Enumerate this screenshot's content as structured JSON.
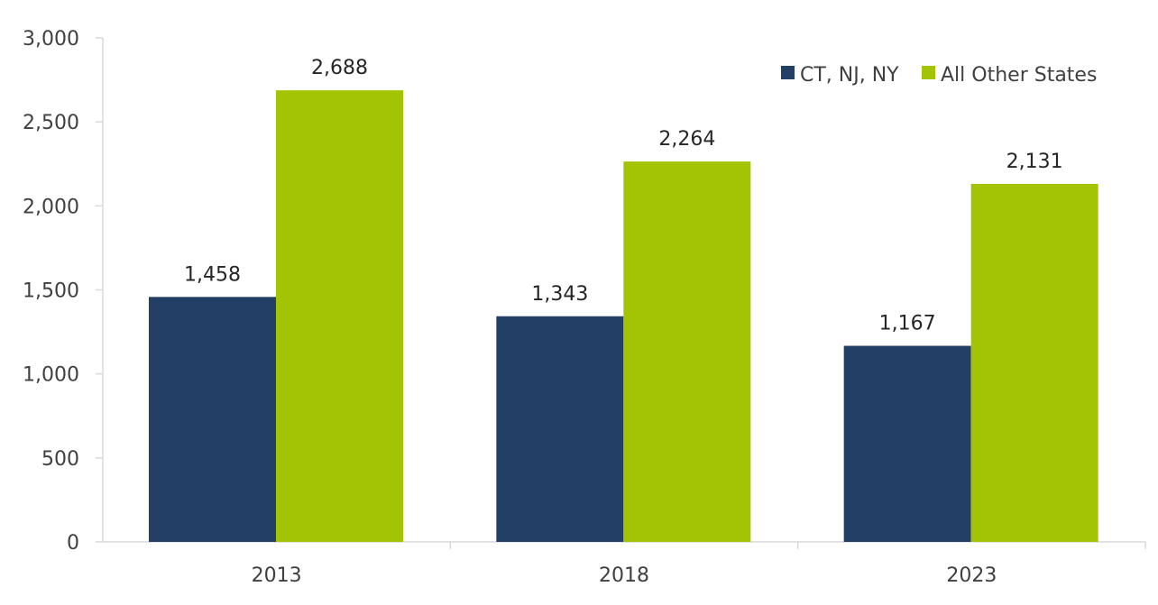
{
  "chart_data": {
    "type": "bar",
    "title": "",
    "xlabel": "",
    "ylabel": "",
    "categories": [
      "2013",
      "2018",
      "2023"
    ],
    "series": [
      {
        "name": "CT, NJ, NY",
        "color": "#243f66",
        "values": [
          1458,
          1343,
          1167
        ],
        "labels": [
          "1,458",
          "1,343",
          "1,167"
        ]
      },
      {
        "name": "All Other States",
        "color": "#a2c405",
        "values": [
          2688,
          2264,
          2131
        ],
        "labels": [
          "2,688",
          "2,264",
          "2,131"
        ]
      }
    ],
    "ylim": [
      0,
      3000
    ],
    "yticks": [
      0,
      500,
      1000,
      1500,
      2000,
      2500,
      3000
    ],
    "ytick_labels": [
      "0",
      "500",
      "1,000",
      "1,500",
      "2,000",
      "2,500",
      "3,000"
    ],
    "grid": false,
    "legend_position": "top-right"
  }
}
